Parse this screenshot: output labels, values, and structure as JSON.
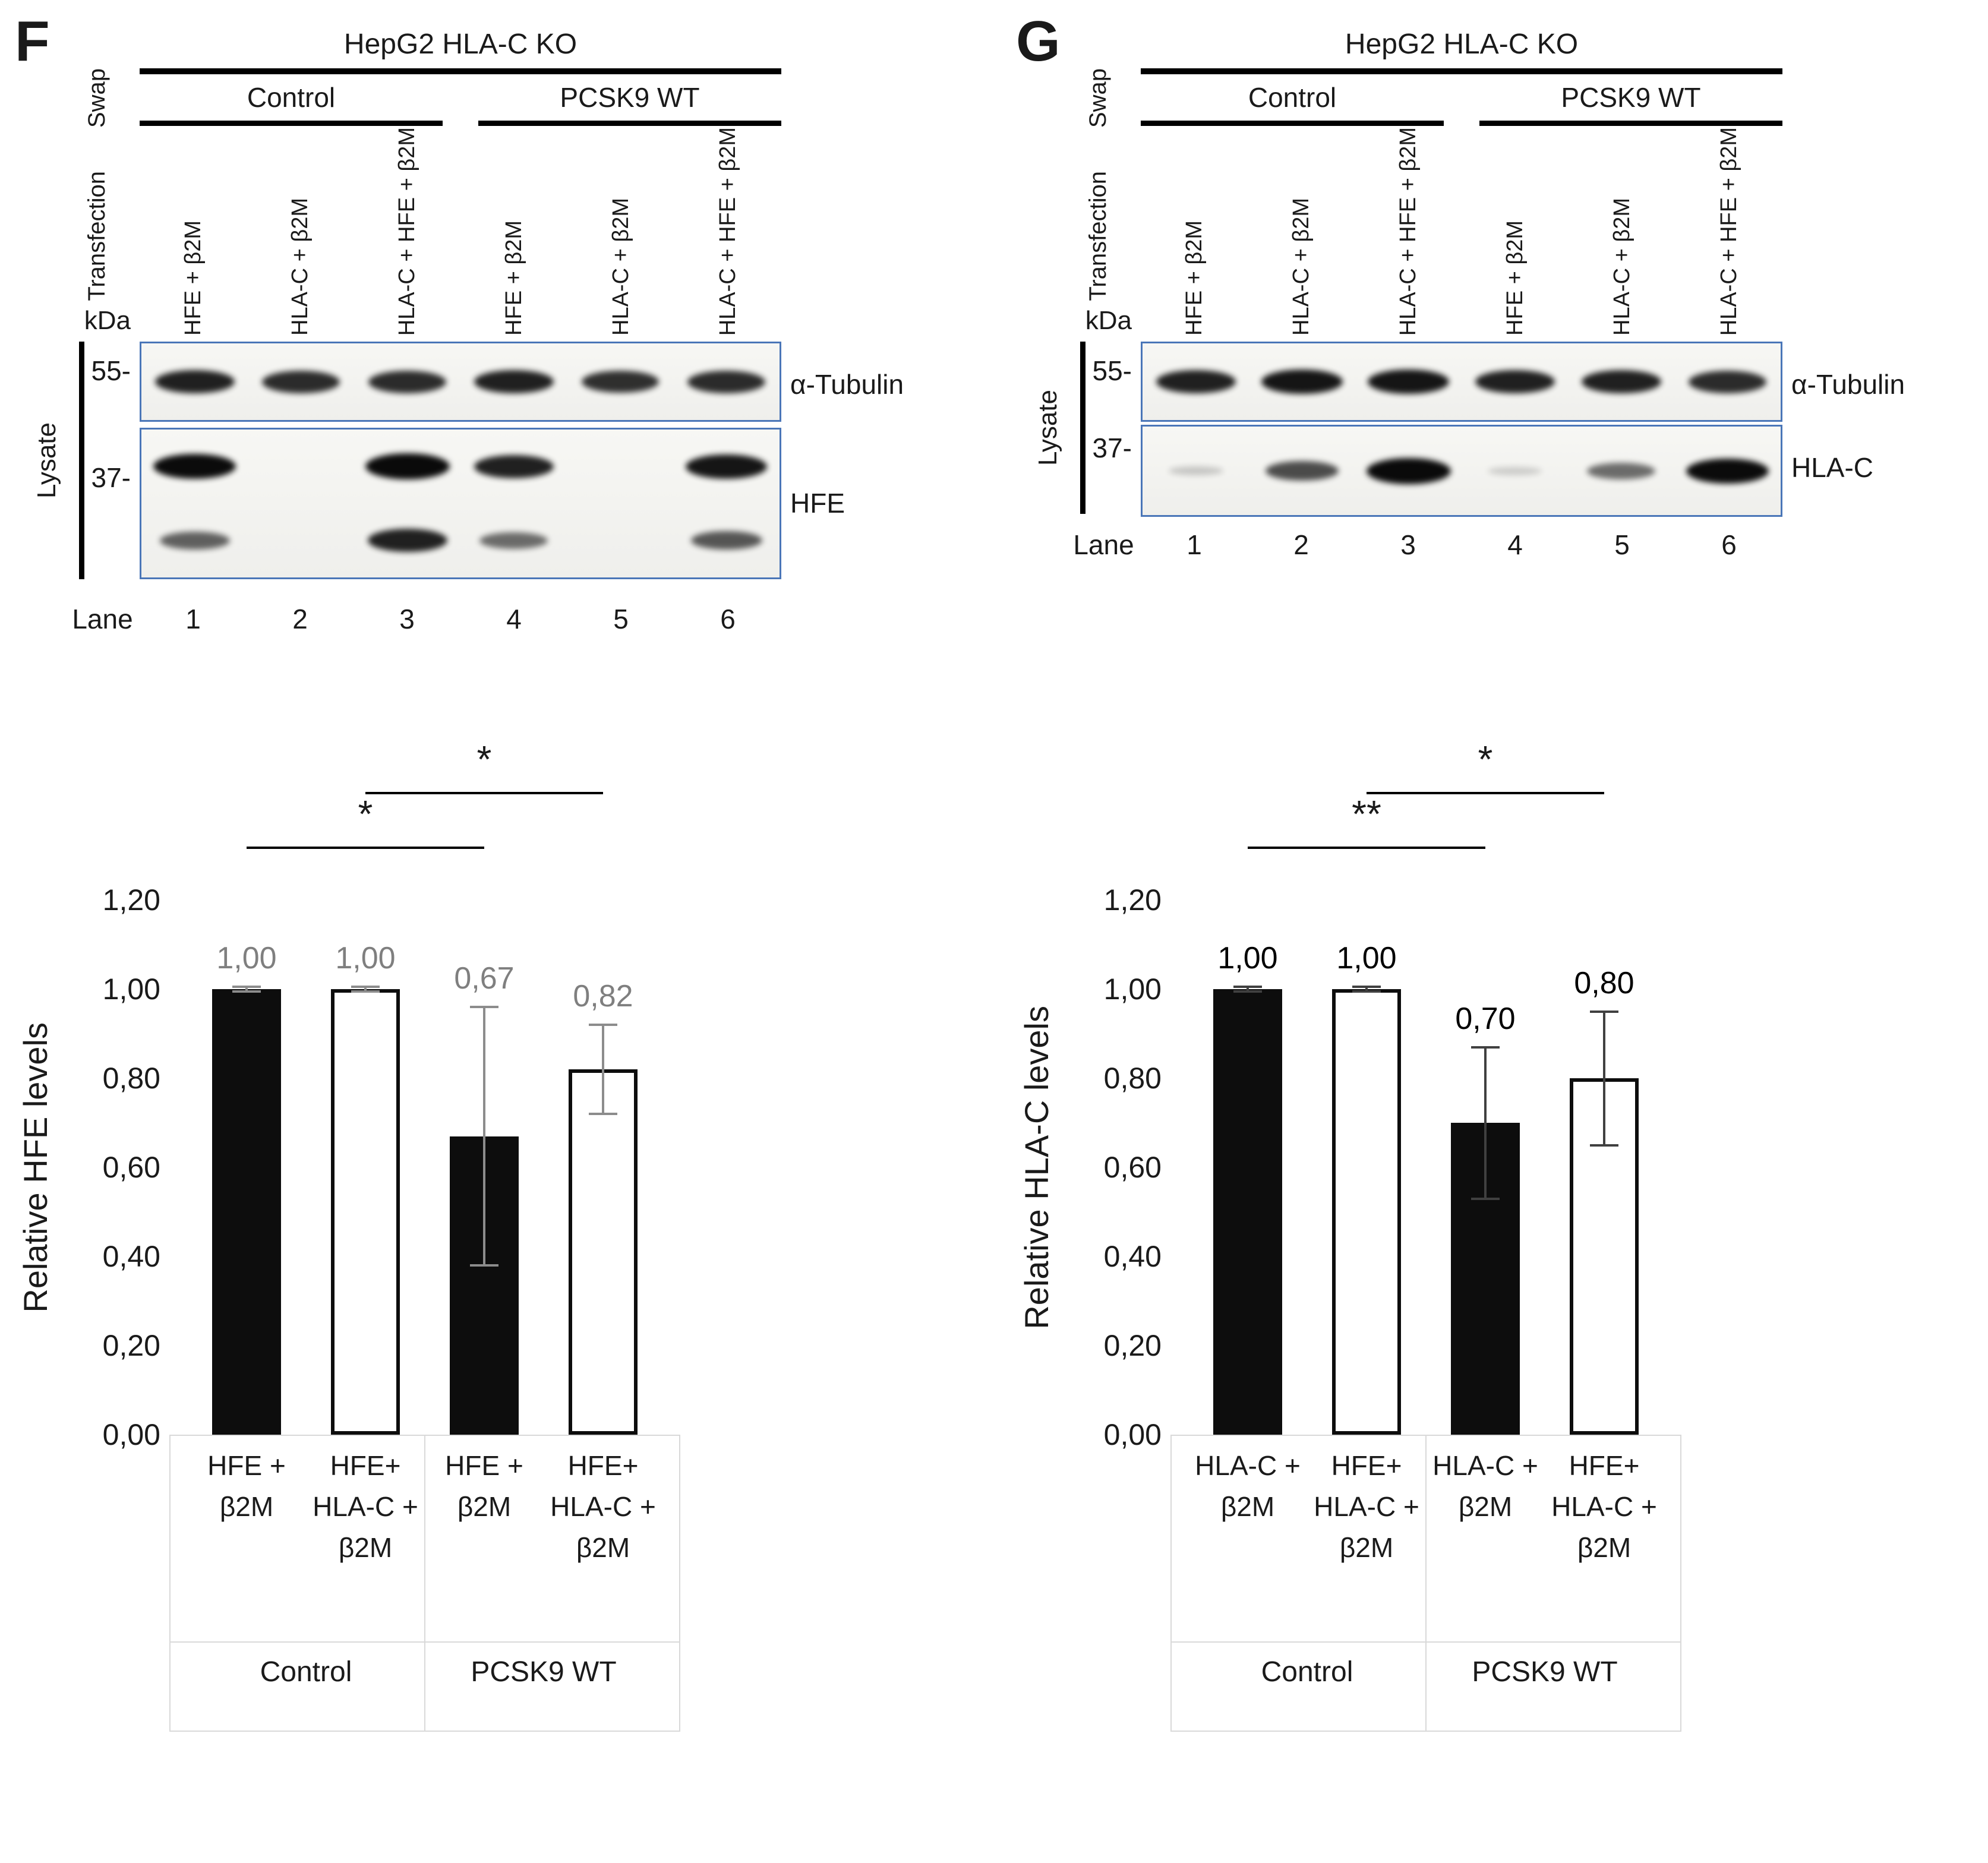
{
  "panels": [
    {
      "letter": "F",
      "blot": {
        "cell_line": "HepG2 HLA-C KO",
        "swap": "Swap",
        "transfection": "Transfection",
        "groups": [
          "Control",
          "PCSK9 WT"
        ],
        "lane_labels": [
          "HFE + β2M",
          "HLA-C + β2M",
          "HLA-C + HFE + β2M",
          "HFE + β2M",
          "HLA-C + β2M",
          "HLA-C + HFE + β2M"
        ],
        "kda": "kDa",
        "marker_top": "55-",
        "marker_bottom": "37-",
        "lysate": "Lysate",
        "lane_word": "Lane",
        "lane_numbers": [
          "1",
          "2",
          "3",
          "4",
          "5",
          "6"
        ],
        "rows": [
          {
            "label": "α-Tubulin",
            "bands": [
              [
                0.85,
                0.8,
                0.8,
                0.85,
                0.78,
                0.8
              ]
            ]
          },
          {
            "label": "HFE",
            "bands": [
              [
                0.95,
                0,
                1.0,
                0.85,
                0,
                0.9
              ],
              [
                0.55,
                0,
                0.85,
                0.5,
                0,
                0.6
              ]
            ]
          }
        ]
      }
    },
    {
      "letter": "G",
      "blot": {
        "cell_line": "HepG2 HLA-C KO",
        "swap": "Swap",
        "transfection": "Transfection",
        "groups": [
          "Control",
          "PCSK9 WT"
        ],
        "lane_labels": [
          "HFE + β2M",
          "HLA-C + β2M",
          "HLA-C + HFE + β2M",
          "HFE + β2M",
          "HLA-C + β2M",
          "HLA-C + HFE + β2M"
        ],
        "kda": "kDa",
        "marker_top": "55-",
        "marker_bottom": "37-",
        "lysate": "Lysate",
        "lane_word": "Lane",
        "lane_numbers": [
          "1",
          "2",
          "3",
          "4",
          "5",
          "6"
        ],
        "rows": [
          {
            "label": "α-Tubulin",
            "bands": [
              [
                0.85,
                0.9,
                0.9,
                0.85,
                0.85,
                0.8
              ]
            ]
          },
          {
            "label": "HLA-C",
            "bands": [
              [
                0.08,
                0.65,
                1.0,
                0.05,
                0.5,
                0.95
              ]
            ]
          }
        ]
      }
    }
  ],
  "chart_data": [
    {
      "type": "bar",
      "title": "",
      "ylabel": "Relative HFE levels",
      "ylim": [
        0,
        1.2
      ],
      "yticks": [
        "0,00",
        "0,20",
        "0,40",
        "0,60",
        "0,80",
        "1,00",
        "1,20"
      ],
      "categories": [
        "HFE +\nβ2M",
        "HFE+\nHLA-C +\nβ2M",
        "HFE +\nβ2M",
        "HFE+\nHLA-C +\nβ2M"
      ],
      "group_labels": [
        "Control",
        "PCSK9 WT"
      ],
      "values": [
        1.0,
        1.0,
        0.67,
        0.82
      ],
      "value_labels": [
        "1,00",
        "1,00",
        "0,67",
        "0,82"
      ],
      "errors": [
        0.005,
        0.005,
        0.29,
        0.1
      ],
      "bar_fills": [
        "black",
        "white",
        "black",
        "white"
      ],
      "value_color": "#7f7f7f",
      "error_color": "#8c8c8c",
      "significance": [
        {
          "from": 0,
          "to": 2,
          "label": "*",
          "level": 1
        },
        {
          "from": 1,
          "to": 3,
          "label": "*",
          "level": 2
        }
      ],
      "grid": false,
      "legend": "none"
    },
    {
      "type": "bar",
      "title": "",
      "ylabel": "Relative HLA-C levels",
      "ylim": [
        0,
        1.2
      ],
      "yticks": [
        "0,00",
        "0,20",
        "0,40",
        "0,60",
        "0,80",
        "1,00",
        "1,20"
      ],
      "categories": [
        "HLA-C +\nβ2M",
        "HFE+\nHLA-C +\nβ2M",
        "HLA-C +\nβ2M",
        "HFE+\nHLA-C +\nβ2M"
      ],
      "group_labels": [
        "Control",
        "PCSK9 WT"
      ],
      "values": [
        1.0,
        1.0,
        0.7,
        0.8
      ],
      "value_labels": [
        "1,00",
        "1,00",
        "0,70",
        "0,80"
      ],
      "errors": [
        0.005,
        0.005,
        0.17,
        0.15
      ],
      "bar_fills": [
        "black",
        "white",
        "black",
        "white"
      ],
      "value_color": "#000000",
      "error_color": "#404040",
      "significance": [
        {
          "from": 0,
          "to": 2,
          "label": "**",
          "level": 1
        },
        {
          "from": 1,
          "to": 3,
          "label": "*",
          "level": 2
        }
      ],
      "grid": false,
      "legend": "none"
    }
  ]
}
